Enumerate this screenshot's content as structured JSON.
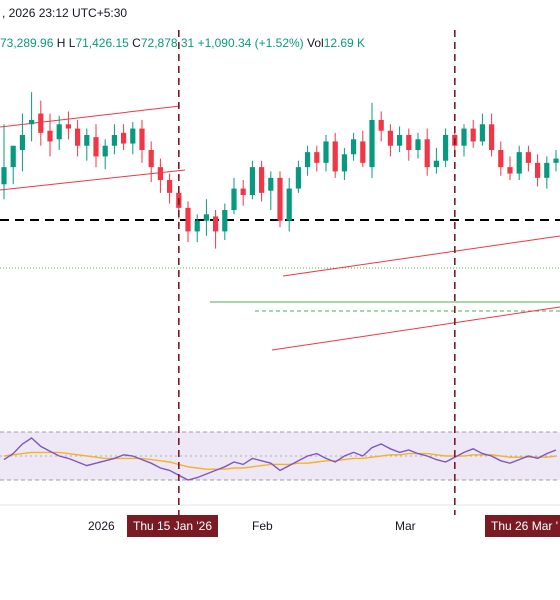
{
  "header": {
    "datetime_text": ", 2026 23:12 UTC+5:30",
    "open_text": "73,289.96",
    "high_label": "H",
    "high_text": "",
    "low_label": "L",
    "low_text": "71,426.15",
    "close_label": "C",
    "close_text": "72,878.31",
    "change_text": "+1,090.34 (+1.52%)",
    "vol_label": "Vol",
    "vol_text": "12.69 K"
  },
  "x_axis": {
    "year_label": "2026",
    "feb_label": "Feb",
    "mar_label": "Mar"
  },
  "markers": [
    {
      "label": "Thu 15 Jan '26"
    },
    {
      "label": "Thu 26 Mar '"
    }
  ],
  "colors": {
    "up": "#089981",
    "down": "#f23645",
    "channel": "#f23645",
    "rsi_line": "#7e57c2",
    "rsi_ma": "#f5b325",
    "rsi_band": "#ede7f6",
    "marker": "#7a1a22",
    "dashed_level": "#000000",
    "support_line": "#4caf50"
  },
  "chart_data": {
    "type": "candlestick",
    "candles": [
      [
        0,
        142,
        150,
        170,
        135
      ],
      [
        1,
        150,
        160,
        153,
        142
      ],
      [
        2,
        158,
        165,
        175,
        148
      ],
      [
        3,
        170,
        172,
        185,
        162
      ],
      [
        4,
        175,
        166,
        181,
        160
      ],
      [
        5,
        167,
        162,
        175,
        155
      ],
      [
        6,
        163,
        170,
        174,
        158
      ],
      [
        7,
        170,
        168,
        176,
        163
      ],
      [
        8,
        168,
        160,
        172,
        155
      ],
      [
        9,
        160,
        165,
        168,
        153
      ],
      [
        10,
        164,
        155,
        170,
        150
      ],
      [
        11,
        155,
        160,
        163,
        149
      ],
      [
        12,
        160,
        165,
        170,
        156
      ],
      [
        13,
        166,
        161,
        170,
        158
      ],
      [
        14,
        161,
        168,
        171,
        156
      ],
      [
        15,
        168,
        158,
        172,
        152
      ],
      [
        16,
        158,
        150,
        162,
        143
      ],
      [
        17,
        150,
        144,
        154,
        138
      ],
      [
        18,
        144,
        138,
        147,
        133
      ],
      [
        19,
        138,
        131,
        141,
        126
      ],
      [
        20,
        131,
        120,
        134,
        115
      ],
      [
        21,
        120,
        125,
        128,
        115
      ],
      [
        22,
        125,
        128,
        135,
        118
      ],
      [
        23,
        127,
        120,
        130,
        112
      ],
      [
        24,
        120,
        130,
        133,
        116
      ],
      [
        25,
        130,
        140,
        145,
        128
      ],
      [
        26,
        140,
        137,
        144,
        132
      ],
      [
        27,
        137,
        150,
        153,
        135
      ],
      [
        28,
        150,
        138,
        153,
        134
      ],
      [
        29,
        139,
        145,
        148,
        130
      ],
      [
        30,
        145,
        125,
        148,
        122
      ],
      [
        31,
        125,
        140,
        145,
        120
      ],
      [
        32,
        140,
        150,
        153,
        138
      ],
      [
        33,
        150,
        157,
        160,
        146
      ],
      [
        34,
        157,
        152,
        160,
        148
      ],
      [
        35,
        152,
        162,
        165,
        148
      ],
      [
        36,
        162,
        148,
        166,
        145
      ],
      [
        37,
        148,
        156,
        159,
        144
      ],
      [
        38,
        156,
        163,
        166,
        153
      ],
      [
        39,
        162,
        152,
        167,
        150
      ],
      [
        40,
        150,
        172,
        180,
        145
      ],
      [
        41,
        172,
        167,
        176,
        162
      ],
      [
        42,
        167,
        160,
        170,
        155
      ],
      [
        43,
        160,
        165,
        169,
        157
      ],
      [
        44,
        165,
        158,
        168,
        153
      ],
      [
        45,
        158,
        163,
        166,
        154
      ],
      [
        46,
        163,
        150,
        168,
        146
      ],
      [
        47,
        150,
        153,
        159,
        147
      ],
      [
        48,
        153,
        165,
        168,
        150
      ],
      [
        49,
        165,
        160,
        169,
        155
      ],
      [
        50,
        160,
        168,
        170,
        155
      ],
      [
        51,
        168,
        162,
        172,
        159
      ],
      [
        52,
        162,
        170,
        175,
        160
      ],
      [
        53,
        170,
        158,
        175,
        155
      ],
      [
        54,
        158,
        150,
        162,
        146
      ],
      [
        55,
        150,
        147,
        155,
        144
      ],
      [
        56,
        147,
        157,
        160,
        144
      ],
      [
        57,
        157,
        152,
        160,
        148
      ],
      [
        58,
        152,
        145,
        156,
        141
      ],
      [
        59,
        145,
        152,
        155,
        140
      ],
      [
        60,
        152,
        154,
        158,
        148
      ]
    ],
    "rsi": [
      47,
      52,
      60,
      65,
      58,
      54,
      50,
      48,
      45,
      42,
      44,
      46,
      48,
      51,
      50,
      47,
      44,
      40,
      38,
      34,
      30,
      32,
      35,
      38,
      41,
      45,
      43,
      48,
      46,
      44,
      38,
      42,
      46,
      50,
      52,
      48,
      45,
      50,
      53,
      50,
      57,
      60,
      56,
      53,
      55,
      52,
      50,
      47,
      45,
      49,
      53,
      56,
      52,
      50,
      46,
      44,
      47,
      50,
      48,
      52,
      55
    ],
    "rsi_ma": [
      50,
      51,
      52,
      53,
      53,
      53,
      53,
      52,
      51,
      50,
      49,
      48,
      48,
      48,
      48,
      48,
      47,
      46,
      45,
      43,
      41,
      40,
      39,
      39,
      39,
      40,
      40,
      41,
      42,
      43,
      43,
      43,
      44,
      44,
      45,
      46,
      46,
      47,
      48,
      48,
      49,
      50,
      51,
      51,
      52,
      52,
      52,
      51,
      50,
      50,
      50,
      51,
      51,
      51,
      50,
      49,
      49,
      49,
      49,
      49,
      50
    ],
    "rsi_ylim": [
      20,
      80
    ],
    "markers_at": [
      19,
      49
    ]
  }
}
